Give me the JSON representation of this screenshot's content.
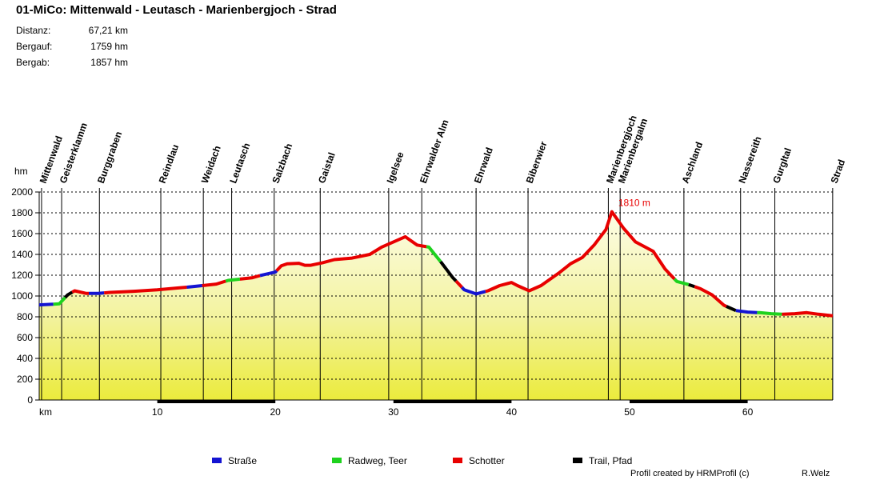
{
  "header": {
    "title": "01-MiCo: Mittenwald - Leutasch - Marienbergjoch - Strad",
    "stats": [
      {
        "label": "Distanz:",
        "value": "67,21 km"
      },
      {
        "label": "Bergauf:",
        "value": "1759 hm"
      },
      {
        "label": "Bergab:",
        "value": "1857 hm"
      }
    ]
  },
  "chart_data": {
    "type": "area",
    "title": "01-MiCo: Mittenwald - Leutasch - Marienbergjoch - Strad",
    "xlabel": "km",
    "ylabel": "hm",
    "xlim": [
      0,
      67.21
    ],
    "ylim": [
      0,
      2000
    ],
    "x_ticks": [
      10,
      20,
      30,
      40,
      50,
      60
    ],
    "y_ticks": [
      0,
      200,
      400,
      600,
      800,
      1000,
      1200,
      1400,
      1600,
      1800,
      2000
    ],
    "grid": "dotted",
    "max_label": "1810 m",
    "max_point": {
      "x": 48.5,
      "y": 1810
    },
    "profile": [
      [
        0,
        915
      ],
      [
        1,
        920
      ],
      [
        1.7,
        925
      ],
      [
        2.4,
        1010
      ],
      [
        3,
        1050
      ],
      [
        4,
        1025
      ],
      [
        5,
        1025
      ],
      [
        6,
        1035
      ],
      [
        8,
        1045
      ],
      [
        10,
        1060
      ],
      [
        12,
        1080
      ],
      [
        13,
        1090
      ],
      [
        15,
        1115
      ],
      [
        16,
        1150
      ],
      [
        18,
        1175
      ],
      [
        19,
        1205
      ],
      [
        20,
        1230
      ],
      [
        20.5,
        1290
      ],
      [
        21,
        1310
      ],
      [
        22,
        1315
      ],
      [
        22.5,
        1295
      ],
      [
        23,
        1295
      ],
      [
        24,
        1320
      ],
      [
        25,
        1350
      ],
      [
        26.5,
        1365
      ],
      [
        28,
        1400
      ],
      [
        29,
        1470
      ],
      [
        30,
        1520
      ],
      [
        31,
        1570
      ],
      [
        32,
        1490
      ],
      [
        33,
        1470
      ],
      [
        34,
        1330
      ],
      [
        35,
        1180
      ],
      [
        36,
        1060
      ],
      [
        37,
        1020
      ],
      [
        38,
        1050
      ],
      [
        39,
        1100
      ],
      [
        40,
        1130
      ],
      [
        40.5,
        1100
      ],
      [
        41.5,
        1050
      ],
      [
        42.5,
        1100
      ],
      [
        44,
        1220
      ],
      [
        45,
        1310
      ],
      [
        46,
        1370
      ],
      [
        47,
        1490
      ],
      [
        48,
        1640
      ],
      [
        48.5,
        1810
      ],
      [
        49.5,
        1650
      ],
      [
        50.5,
        1520
      ],
      [
        52,
        1430
      ],
      [
        53,
        1260
      ],
      [
        54,
        1140
      ],
      [
        55,
        1110
      ],
      [
        56,
        1070
      ],
      [
        57,
        1010
      ],
      [
        58,
        910
      ],
      [
        59,
        860
      ],
      [
        60,
        845
      ],
      [
        61,
        840
      ],
      [
        62,
        830
      ],
      [
        63,
        825
      ],
      [
        64,
        830
      ],
      [
        65,
        840
      ],
      [
        66,
        825
      ],
      [
        67.21,
        810
      ]
    ],
    "surface_segments": [
      {
        "from": 0,
        "to": 1.2,
        "type": "Straße"
      },
      {
        "from": 1.2,
        "to": 2.2,
        "type": "Radweg, Teer"
      },
      {
        "from": 2.2,
        "to": 2.8,
        "type": "Trail, Pfad"
      },
      {
        "from": 2.8,
        "to": 4.2,
        "type": "Schotter"
      },
      {
        "from": 4.2,
        "to": 5.5,
        "type": "Straße"
      },
      {
        "from": 5.5,
        "to": 12.5,
        "type": "Schotter"
      },
      {
        "from": 12.5,
        "to": 13.8,
        "type": "Straße"
      },
      {
        "from": 13.8,
        "to": 15.8,
        "type": "Schotter"
      },
      {
        "from": 15.8,
        "to": 17,
        "type": "Radweg, Teer"
      },
      {
        "from": 17,
        "to": 18.7,
        "type": "Schotter"
      },
      {
        "from": 18.7,
        "to": 20.1,
        "type": "Straße"
      },
      {
        "from": 20.1,
        "to": 32.8,
        "type": "Schotter"
      },
      {
        "from": 32.8,
        "to": 34,
        "type": "Radweg, Teer"
      },
      {
        "from": 34,
        "to": 35.3,
        "type": "Trail, Pfad"
      },
      {
        "from": 35.3,
        "to": 35.8,
        "type": "Schotter"
      },
      {
        "from": 35.8,
        "to": 37.8,
        "type": "Straße"
      },
      {
        "from": 37.8,
        "to": 53.8,
        "type": "Schotter"
      },
      {
        "from": 53.8,
        "to": 55,
        "type": "Radweg, Teer"
      },
      {
        "from": 55,
        "to": 55.5,
        "type": "Trail, Pfad"
      },
      {
        "from": 55.5,
        "to": 58.2,
        "type": "Schotter"
      },
      {
        "from": 58.2,
        "to": 59,
        "type": "Trail, Pfad"
      },
      {
        "from": 59,
        "to": 60.8,
        "type": "Straße"
      },
      {
        "from": 60.8,
        "to": 62.9,
        "type": "Radweg, Teer"
      },
      {
        "from": 62.9,
        "to": 67.21,
        "type": "Schotter"
      }
    ],
    "waypoints": [
      {
        "name": "Mittenwald",
        "km": 0.2
      },
      {
        "name": "Geisterklamm",
        "km": 1.9
      },
      {
        "name": "Burggraben",
        "km": 5.1
      },
      {
        "name": "Reindlau",
        "km": 10.3
      },
      {
        "name": "Weidach",
        "km": 13.9
      },
      {
        "name": "Leutasch",
        "km": 16.3
      },
      {
        "name": "Salzbach",
        "km": 19.9
      },
      {
        "name": "Gaistal",
        "km": 23.8
      },
      {
        "name": "Igelsee",
        "km": 29.6
      },
      {
        "name": "Ehrwalder Alm",
        "km": 32.4
      },
      {
        "name": "Ehrwald",
        "km": 37.0
      },
      {
        "name": "Biberwier",
        "km": 41.4
      },
      {
        "name": "Marienbergjoch",
        "km": 48.2
      },
      {
        "name": "Marienbergalm",
        "km": 49.2
      },
      {
        "name": "Aschland",
        "km": 54.6
      },
      {
        "name": "Nassereith",
        "km": 59.4
      },
      {
        "name": "Gurgltal",
        "km": 62.3
      },
      {
        "name": "Strad",
        "km": 67.2
      }
    ],
    "legend": [
      {
        "label": "Straße",
        "color": "#1414d2"
      },
      {
        "label": "Radweg, Teer",
        "color": "#1ed21e"
      },
      {
        "label": "Schotter",
        "color": "#e80000"
      },
      {
        "label": "Trail, Pfad",
        "color": "#000000"
      }
    ],
    "axis_bar_blocks": [
      [
        10,
        20
      ],
      [
        30,
        40
      ],
      [
        50,
        60
      ]
    ],
    "max_label_color": "#e80000"
  },
  "footer": {
    "credit": "Profil created by HRMProfil (c)",
    "author": "R.Welz"
  }
}
